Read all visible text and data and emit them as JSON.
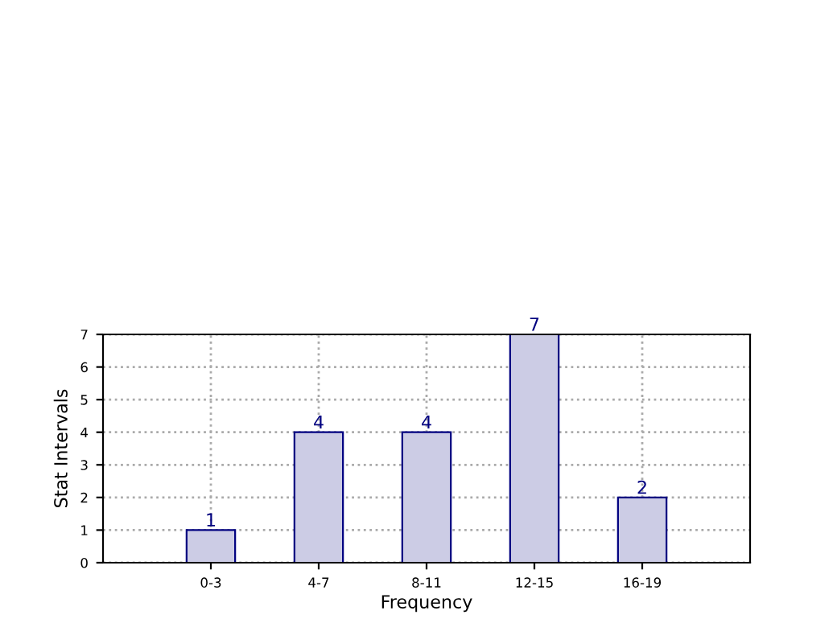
{
  "chart_data": {
    "type": "bar",
    "categories": [
      "0-3",
      "4-7",
      "8-11",
      "12-15",
      "16-19"
    ],
    "values": [
      1,
      4,
      4,
      7,
      2
    ],
    "color": "#ccccE5",
    "xlabel": "Frequency",
    "ylabel": "Stat Intervals",
    "ylim": [
      0,
      7
    ],
    "yticks": [
      0,
      1,
      2,
      3,
      4,
      5,
      6,
      7
    ],
    "grid": true,
    "line_style": "dotted",
    "data_labels": true
  }
}
